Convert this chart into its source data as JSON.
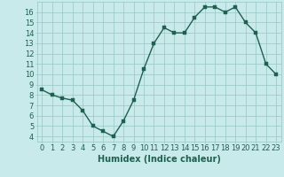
{
  "x": [
    0,
    1,
    2,
    3,
    4,
    5,
    6,
    7,
    8,
    9,
    10,
    11,
    12,
    13,
    14,
    15,
    16,
    17,
    18,
    19,
    20,
    21,
    22,
    23
  ],
  "y": [
    8.5,
    8.0,
    7.7,
    7.5,
    6.5,
    5.0,
    4.5,
    4.0,
    5.5,
    7.5,
    10.5,
    13.0,
    14.5,
    14.0,
    14.0,
    15.5,
    16.5,
    16.5,
    16.0,
    16.5,
    15.0,
    14.0,
    11.0,
    10.0
  ],
  "line_color": "#206050",
  "marker_color": "#206050",
  "bg_color": "#c8eaea",
  "grid_color": "#98c4c4",
  "xlabel": "Humidex (Indice chaleur)",
  "xlim": [
    -0.5,
    23.5
  ],
  "ylim": [
    3.5,
    17.0
  ],
  "yticks": [
    4,
    5,
    6,
    7,
    8,
    9,
    10,
    11,
    12,
    13,
    14,
    15,
    16
  ],
  "xticks": [
    0,
    1,
    2,
    3,
    4,
    5,
    6,
    7,
    8,
    9,
    10,
    11,
    12,
    13,
    14,
    15,
    16,
    17,
    18,
    19,
    20,
    21,
    22,
    23
  ],
  "font_color": "#206050",
  "xlabel_fontsize": 7,
  "tick_fontsize": 6,
  "marker_size": 2.5,
  "line_width": 1.0
}
